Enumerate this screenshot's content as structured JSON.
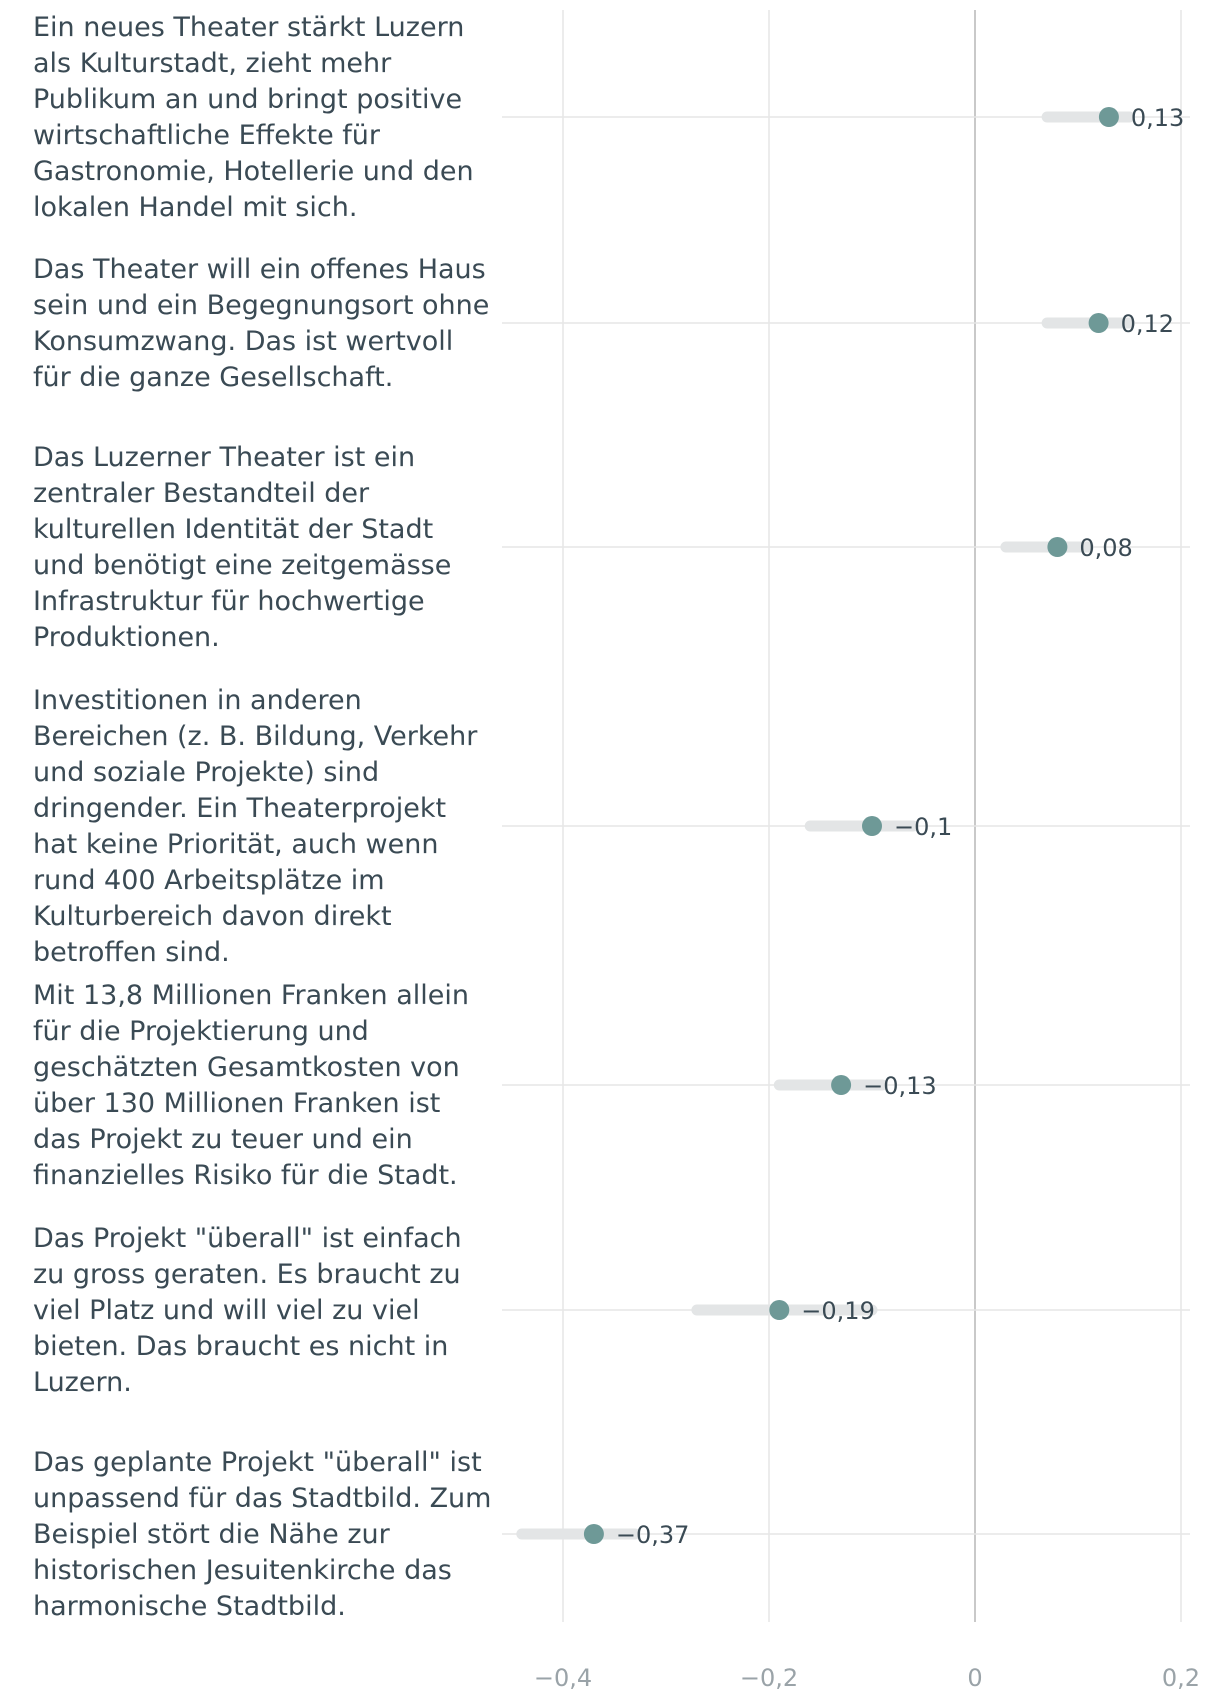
{
  "chart_data": {
    "type": "dot",
    "title": "",
    "xlabel": "",
    "ylabel": "",
    "xlim": [
      -0.45,
      0.2
    ],
    "x_ticks": [
      -0.4,
      -0.2,
      0,
      0.2
    ],
    "x_tick_labels": [
      "−0,4",
      "−0,2",
      "0",
      "0,2"
    ],
    "grid": true,
    "colors": {
      "dot": "#6e9997",
      "interval": "#e3e5e6",
      "grid": "#e6e6e6",
      "zero_line": "#c9c9c9"
    },
    "items": [
      {
        "statement": "Ein neues Theater stärkt Luzern als Kulturstadt, zieht mehr Publikum an und bringt positive wirtschaftliche Effekte für Gastronomie, Hotellerie und den lokalen Handel mit sich.",
        "lines": [
          "Ein neues Theater stärkt Luzern",
          "als Kulturstadt, zieht mehr",
          "Publikum an und bringt positive",
          "wirtschaftliche Effekte für",
          "Gastronomie, Hotellerie und den",
          "lokalen Handel mit sich."
        ],
        "value": 0.13,
        "label": "0,13",
        "ci": [
          0.07,
          0.15
        ]
      },
      {
        "statement": "Das Theater will ein offenes Haus sein und ein Begegnungsort ohne Konsumzwang. Das ist wertvoll für die ganze Gesellschaft.",
        "lines": [
          "Das Theater will ein offenes Haus",
          "sein und ein Begegnungsort ohne",
          "Konsumzwang. Das ist wertvoll",
          "für die ganze Gesellschaft."
        ],
        "value": 0.12,
        "label": "0,12",
        "ci": [
          0.07,
          0.15
        ]
      },
      {
        "statement": "Das Luzerner Theater ist ein zentraler Bestandteil der kulturellen Identität der Stadt und benötigt eine zeitgemässe Infrastruktur für hochwertige Produktionen.",
        "lines": [
          "Das Luzerner Theater ist ein",
          "zentraler Bestandteil der",
          "kulturellen Identität der Stadt",
          "und benötigt eine zeitgemässe",
          "Infrastruktur für hochwertige",
          "Produktionen."
        ],
        "value": 0.08,
        "label": "0,08",
        "ci": [
          0.03,
          0.11
        ]
      },
      {
        "statement": "Investitionen in anderen Bereichen (z. B. Bildung, Verkehr und soziale Projekte) sind dringender. Ein Theaterprojekt hat keine Priorität, auch wenn rund 400 Arbeitsplätze im Kulturbereich davon direkt betroffen sind.",
        "lines": [
          "Investitionen in anderen",
          "Bereichen (z. B. Bildung, Verkehr",
          "und soziale Projekte) sind",
          "dringender. Ein Theaterprojekt",
          "hat keine Priorität, auch wenn",
          "rund 400 Arbeitsplätze im",
          "Kulturbereich davon direkt",
          "betroffen sind."
        ],
        "value": -0.1,
        "label": "−0,1",
        "ci": [
          -0.16,
          -0.06
        ]
      },
      {
        "statement": "Mit 13,8 Millionen Franken allein für die Projektierung und geschätzten Gesamtkosten von über 130 Millionen Franken ist das Projekt zu teuer und ein finanzielles Risiko für die Stadt.",
        "lines": [
          "Mit 13,8 Millionen Franken allein",
          "für die Projektierung und",
          "geschätzten Gesamtkosten von",
          "über 130 Millionen Franken ist",
          "das Projekt zu teuer und ein",
          "finanzielles Risiko für die Stadt."
        ],
        "value": -0.13,
        "label": "−0,13",
        "ci": [
          -0.19,
          -0.09
        ]
      },
      {
        "statement": "Das Projekt \"überall\" ist einfach zu gross geraten. Es braucht zu viel Platz und will viel zu viel bieten. Das braucht es nicht in Luzern.",
        "lines": [
          "Das Projekt \"überall\" ist einfach",
          "zu gross geraten. Es braucht zu",
          "viel Platz und will viel zu viel",
          "bieten. Das braucht es nicht in",
          "Luzern."
        ],
        "value": -0.19,
        "label": "−0,19",
        "ci": [
          -0.27,
          -0.1
        ]
      },
      {
        "statement": "Das geplante Projekt \"überall\" ist unpassend für das Stadtbild. Zum Beispiel stört die Nähe zur historischen Jesuitenkirche das harmonische Stadtbild.",
        "lines": [
          "Das geplante Projekt \"überall\" ist",
          "unpassend für das Stadtbild. Zum",
          "Beispiel stört die Nähe zur",
          "historischen Jesuitenkirche das",
          "harmonische Stadtbild."
        ],
        "value": -0.37,
        "label": "−0,37",
        "ci": [
          -0.44,
          -0.33
        ]
      }
    ]
  }
}
